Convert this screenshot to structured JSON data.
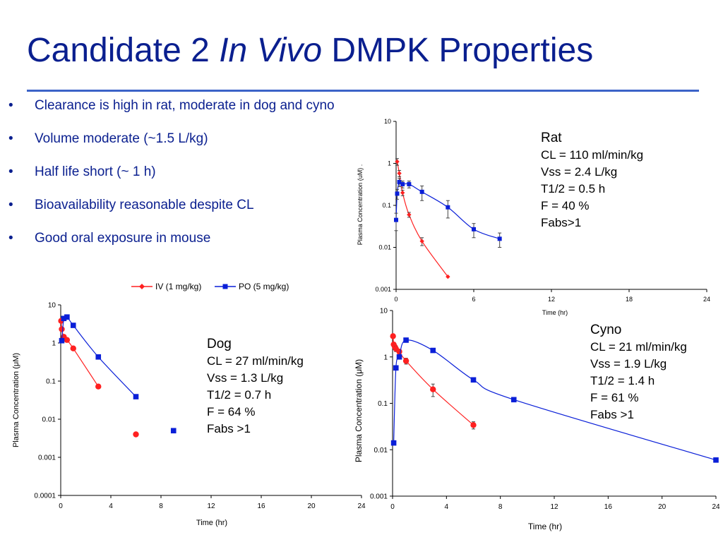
{
  "slide": {
    "title_part1": "Candidate 2 ",
    "title_part2": "In Vivo",
    "title_part3": " DMPK Properties",
    "bullet_char": "•",
    "bullets": [
      "Clearance is high in rat, moderate in dog and cyno",
      "Volume moderate (~1.5 L/kg)",
      "Half life short (~ 1 h)",
      "Bioavailability reasonable despite CL",
      "Good oral exposure in mouse"
    ],
    "legend": {
      "iv": "IV (1 mg/kg)",
      "po": "PO (5 mg/kg)"
    },
    "colors": {
      "title": "#0a1f8f",
      "rule": "#3b63c8",
      "iv": "#ff2020",
      "po": "#0a1fd8"
    }
  },
  "chart_data": [
    {
      "type": "scatter",
      "id": "rat",
      "title": "",
      "info_lines": [
        "Rat",
        "CL = 110 ml/min/kg",
        "Vss = 2.4 L/kg",
        "T1/2 = 0.5 h",
        "F = 40 %",
        "Fabs>1"
      ],
      "xlabel": "Time (hr)",
      "ylabel": "Plasma Concentration (uM) .",
      "xlim": [
        0,
        24
      ],
      "xticks": [
        0,
        6,
        12,
        18,
        24
      ],
      "ylim": [
        0.001,
        10
      ],
      "yscale": "log",
      "yticks": [
        0.001,
        0.01,
        0.1,
        1,
        10
      ],
      "ytick_labels": [
        "0.001",
        "0.01",
        "0.1",
        "1",
        "10"
      ],
      "marker_style": "small",
      "series": [
        {
          "name": "IV (1 mg/kg)",
          "color": "#ff2020",
          "marker": "diamond",
          "x": [
            0.083,
            0.25,
            0.5,
            1,
            2,
            4
          ],
          "y": [
            1.1,
            0.58,
            0.2,
            0.06,
            0.014,
            0.002
          ],
          "err": [
            0.2,
            0.1,
            0.03,
            0.008,
            0.003,
            0
          ]
        },
        {
          "name": "PO (5 mg/kg)",
          "color": "#0a1fd8",
          "marker": "square",
          "x": [
            0,
            0.083,
            0.25,
            0.5,
            1,
            2,
            4,
            6,
            8
          ],
          "y": [
            0.045,
            0.19,
            0.36,
            0.32,
            0.32,
            0.21,
            0.09,
            0.027,
            0.016
          ],
          "err": [
            0.02,
            0.05,
            0.08,
            0.06,
            0.06,
            0.08,
            0.04,
            0.01,
            0.006
          ]
        }
      ]
    },
    {
      "type": "scatter",
      "id": "dog",
      "title": "",
      "info_lines": [
        "Dog",
        "CL = 27 ml/min/kg",
        "Vss = 1.3 L/kg",
        "T1/2 = 0.7 h",
        "F = 64 %",
        "Fabs >1"
      ],
      "xlabel": "Time (hr)",
      "ylabel": "Plasma Concentration (μM)",
      "xlim": [
        0,
        24
      ],
      "xticks": [
        0,
        4,
        8,
        12,
        16,
        20,
        24
      ],
      "ylim": [
        0.0001,
        10
      ],
      "yscale": "log",
      "yticks": [
        0.0001,
        0.001,
        0.01,
        0.1,
        1,
        10
      ],
      "ytick_labels": [
        "0.0001",
        "0.001",
        "0.01",
        "0.1",
        "1",
        "10"
      ],
      "marker_style": "large",
      "series": [
        {
          "name": "IV (1 mg/kg)",
          "color": "#ff2020",
          "marker": "circle",
          "x": [
            0.033,
            0.083,
            0.25,
            0.5,
            1,
            3,
            6
          ],
          "y": [
            3.8,
            2.3,
            1.45,
            1.2,
            0.72,
            0.072,
            0.004
          ],
          "line_points": 6
        },
        {
          "name": "PO (5 mg/kg)",
          "color": "#0a1fd8",
          "marker": "square",
          "x": [
            0.083,
            0.25,
            0.5,
            1,
            3,
            6,
            9
          ],
          "y": [
            1.15,
            4.4,
            4.8,
            2.9,
            0.43,
            0.039,
            0.005
          ],
          "line_points": 6
        }
      ]
    },
    {
      "type": "scatter",
      "id": "cyno",
      "title": "",
      "info_lines": [
        "Cyno",
        "CL = 21 ml/min/kg",
        "Vss = 1.9 L/kg",
        "T1/2 = 1.4 h",
        "F = 61 %",
        "Fabs >1"
      ],
      "xlabel": "Time (hr)",
      "ylabel": "Plasma Concentration (μM)",
      "xlim": [
        0,
        24
      ],
      "xticks": [
        0,
        4,
        8,
        12,
        16,
        20,
        24
      ],
      "ylim": [
        0.001,
        10
      ],
      "yscale": "log",
      "yticks": [
        0.001,
        0.01,
        0.1,
        1,
        10
      ],
      "ytick_labels": [
        "0.001",
        "0.01",
        "0.1",
        "1",
        "10"
      ],
      "marker_style": "large",
      "series": [
        {
          "name": "IV (1 mg/kg)",
          "color": "#ff2020",
          "marker": "circle",
          "x": [
            0.033,
            0.083,
            0.17,
            0.25,
            0.5,
            1,
            3,
            6
          ],
          "y": [
            2.8,
            1.85,
            1.65,
            1.5,
            1.3,
            0.82,
            0.2,
            0.034
          ],
          "err": [
            0,
            0.2,
            0.2,
            0.2,
            0.15,
            0.12,
            0.06,
            0.006
          ]
        },
        {
          "name": "PO (5 mg/kg)",
          "color": "#0a1fd8",
          "marker": "square",
          "x": [
            0.083,
            0.25,
            0.5,
            1,
            3,
            6,
            9,
            24
          ],
          "y": [
            0.014,
            0.58,
            1.0,
            2.3,
            1.38,
            0.32,
            0.12,
            0.006
          ],
          "err": [
            0,
            0,
            0,
            0,
            0.1,
            0.03,
            0,
            0
          ]
        }
      ]
    }
  ]
}
